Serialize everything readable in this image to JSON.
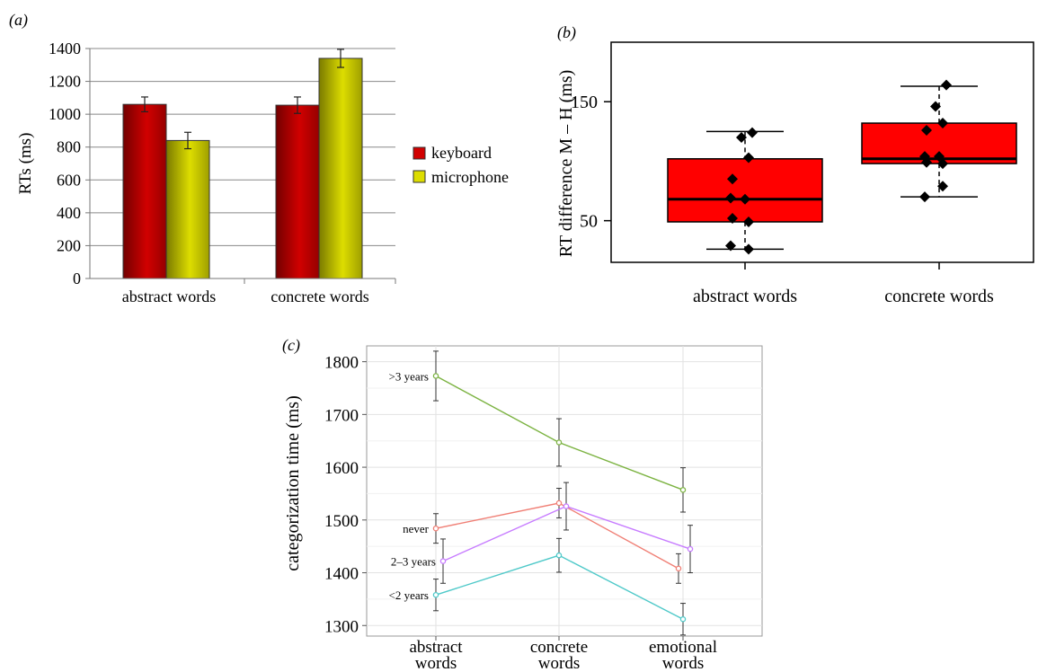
{
  "chart_data": [
    {
      "panel": "(a)",
      "type": "bar",
      "ylabel": "RTs (ms)",
      "ylim": [
        0,
        1400
      ],
      "yticks": [
        0,
        200,
        400,
        600,
        800,
        1000,
        1200,
        1400
      ],
      "grid": true,
      "legend_position": "right",
      "categories": [
        "abstract words",
        "concrete words"
      ],
      "series": [
        {
          "name": "keyboard",
          "color": "#d10000",
          "values": [
            1060,
            1055
          ],
          "errors": [
            45,
            50
          ]
        },
        {
          "name": "microphone",
          "color": "#dddd00",
          "values": [
            840,
            1340
          ],
          "errors": [
            50,
            55
          ]
        }
      ]
    },
    {
      "panel": "(b)",
      "type": "box",
      "ylabel": "RT difference M – H (ms)",
      "ylim": [
        15,
        200
      ],
      "yticks": [
        50,
        150
      ],
      "box_color": "#ff0000",
      "categories": [
        "abstract words",
        "concrete words"
      ],
      "boxes": [
        {
          "whisker_low": 26,
          "q1": 49,
          "median": 68,
          "q3": 102,
          "whisker_high": 125,
          "points": [
            29,
            26,
            52,
            49,
            69,
            68,
            85,
            103,
            120,
            124
          ]
        },
        {
          "whisker_low": 70,
          "q1": 98,
          "median": 102,
          "q3": 132,
          "whisker_high": 163,
          "points": [
            70,
            79,
            99,
            98,
            104,
            104,
            126,
            132,
            146,
            164
          ]
        }
      ]
    },
    {
      "panel": "(c)",
      "type": "line",
      "ylabel": "categorization time (ms)",
      "ylim": [
        1280,
        1830
      ],
      "yticks": [
        1300,
        1400,
        1500,
        1600,
        1700,
        1800
      ],
      "grid": true,
      "categories": [
        "abstract\nwords",
        "concrete\nwords",
        "emotional\nwords"
      ],
      "series": [
        {
          "name": ">3 years",
          "color": "#7cb342",
          "values": [
            1773,
            1647,
            1557
          ],
          "errors": [
            47,
            45,
            42
          ]
        },
        {
          "name": "never",
          "color": "#f07f75",
          "values": [
            1484,
            1532,
            1408
          ],
          "errors": [
            28,
            28,
            28
          ]
        },
        {
          "name": "2–3 years",
          "color": "#c77cff",
          "values": [
            1422,
            1526,
            1445
          ],
          "errors": [
            42,
            45,
            45
          ]
        },
        {
          "name": "<2 years",
          "color": "#4fc9c9",
          "values": [
            1358,
            1433,
            1312
          ],
          "errors": [
            30,
            32,
            30
          ]
        }
      ]
    }
  ]
}
